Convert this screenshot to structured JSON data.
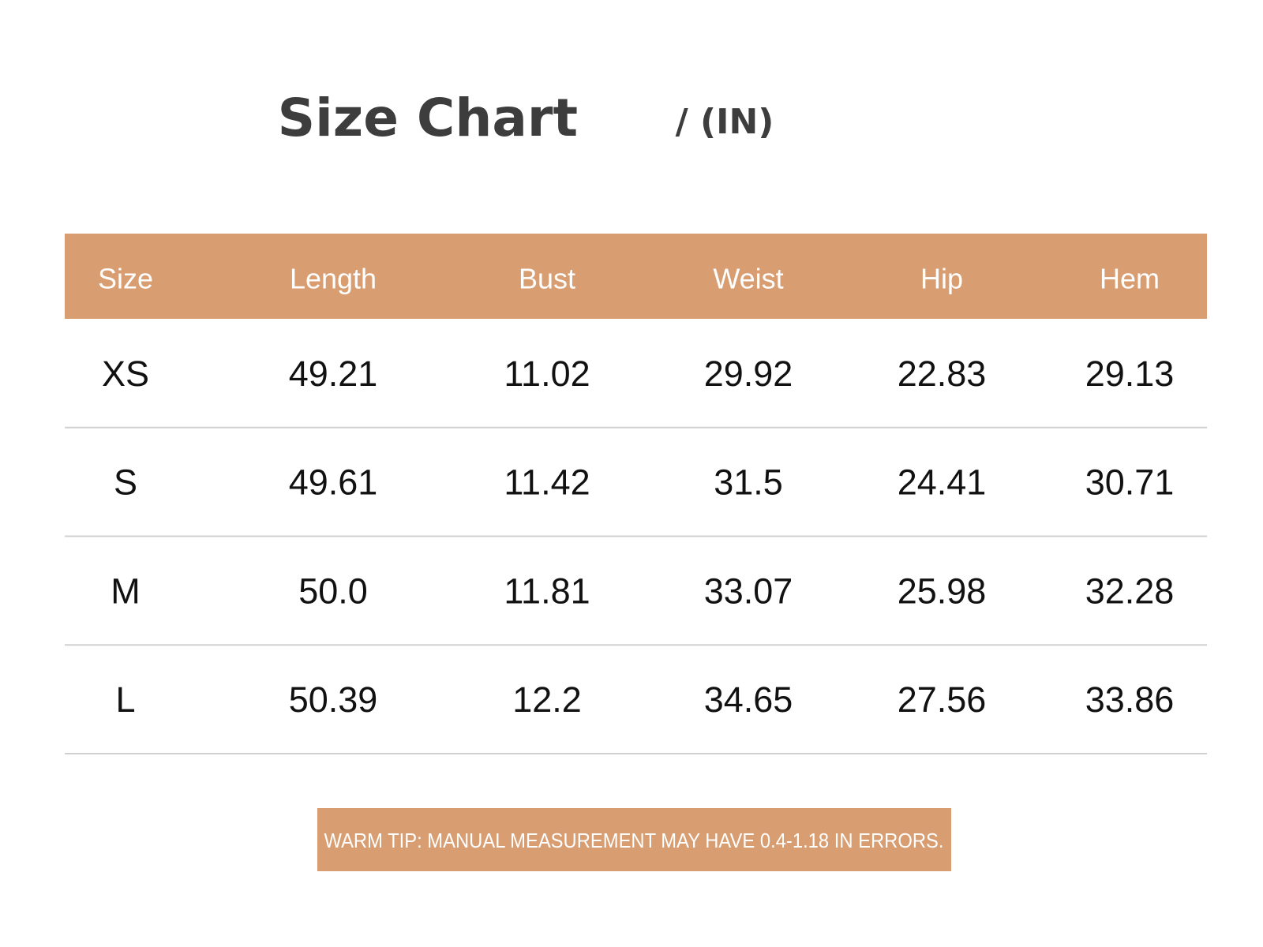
{
  "title": "Size Chart",
  "unit": "/ (IN)",
  "table": {
    "header": [
      "Size",
      "Length",
      "Bust",
      "Weist",
      "Hip",
      "Hem"
    ],
    "rows": [
      [
        "XS",
        "49.21",
        "11.02",
        "29.92",
        "22.83",
        "29.13"
      ],
      [
        "S",
        "49.61",
        "11.42",
        "31.5",
        "24.41",
        "30.71"
      ],
      [
        "M",
        "50.0",
        "11.81",
        "33.07",
        "25.98",
        "32.28"
      ],
      [
        "L",
        "50.39",
        "12.2",
        "34.65",
        "27.56",
        "33.86"
      ]
    ]
  },
  "tip": "WARM TIP: MANUAL MEASUREMENT MAY HAVE 0.4-1.18 IN ERRORS."
}
